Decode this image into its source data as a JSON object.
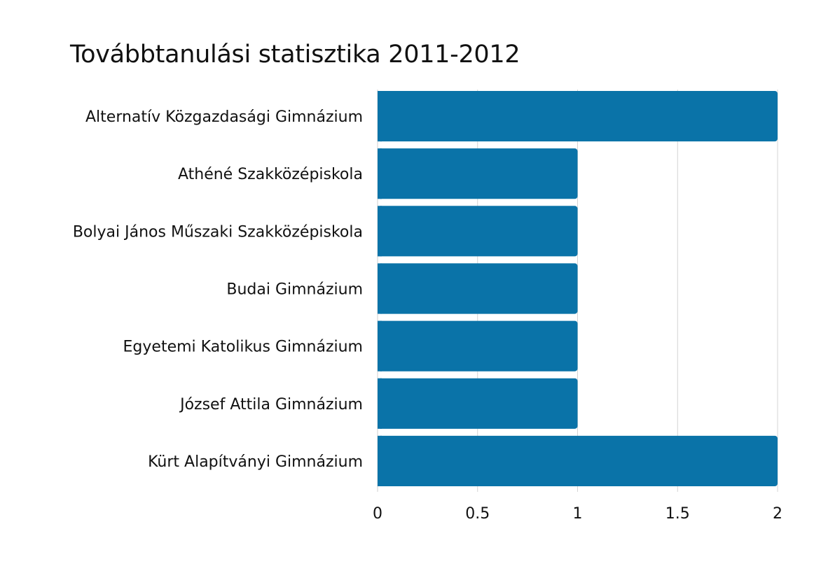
{
  "chart_data": {
    "type": "bar",
    "orientation": "horizontal",
    "title": "Továbbtanulási statisztika 2011-2012",
    "categories": [
      "Alternatív Közgazdasági Gimnázium",
      "Athéné Szakközépiskola",
      "Bolyai János Műszaki Szakközépiskola",
      "Budai Gimnázium",
      "Egyetemi Katolikus Gimnázium",
      "József Attila Gimnázium",
      "Kürt Alapítványi Gimnázium"
    ],
    "values": [
      2,
      1,
      1,
      1,
      1,
      1,
      2
    ],
    "xlim": [
      0,
      2
    ],
    "xticks": [
      0,
      0.5,
      1,
      1.5,
      2
    ],
    "xtick_labels": [
      "0",
      "0.5",
      "1",
      "1.5",
      "2"
    ],
    "xlabel": "",
    "ylabel": "",
    "grid": true,
    "legend": "none",
    "bar_color": "#0a73a8",
    "grid_color": "#d4d4d4"
  }
}
